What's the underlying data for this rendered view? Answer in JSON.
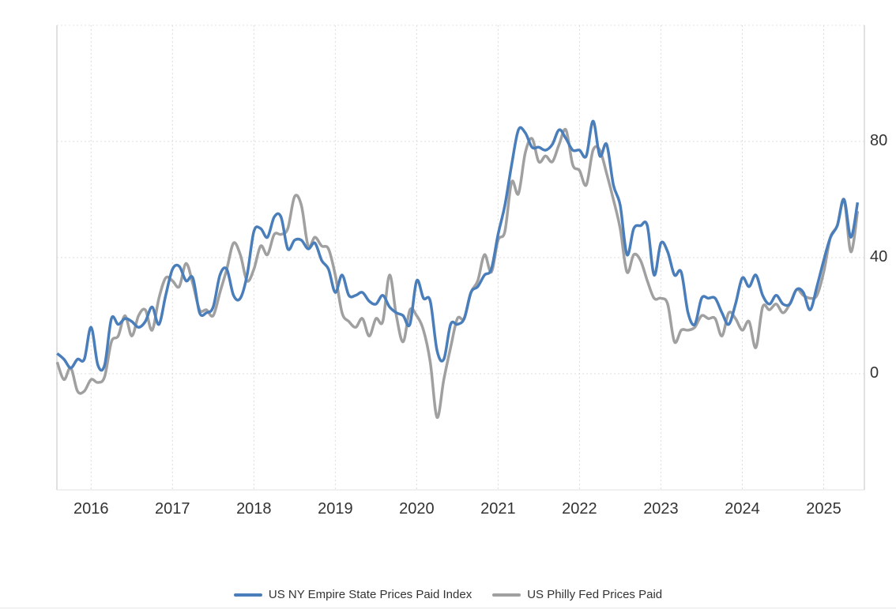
{
  "chart_data": {
    "type": "line",
    "title": "",
    "xlabel": "",
    "ylabel": "",
    "start": "2015-08",
    "frequency": "monthly",
    "xlim": [
      2015.58,
      2025.5
    ],
    "ylim": [
      -40,
      120
    ],
    "x_ticks": [
      "2016",
      "2017",
      "2018",
      "2019",
      "2020",
      "2021",
      "2022",
      "2023",
      "2024",
      "2025"
    ],
    "y_ticks": [
      "0",
      "40",
      "80"
    ],
    "y_tick_values": [
      0,
      40,
      80
    ],
    "grid": true,
    "legend_position": "bottom-center",
    "series": [
      {
        "name": "US NY Empire State Prices Paid Index",
        "color": "#4a7ebb",
        "values": [
          7,
          5,
          2,
          5,
          5,
          16,
          3,
          3,
          19,
          17,
          19,
          18,
          16,
          18,
          23,
          17,
          27,
          36,
          37,
          32,
          33,
          21,
          21,
          23,
          34,
          36,
          27,
          26,
          34,
          49,
          50,
          47,
          54,
          54,
          43,
          46,
          46,
          43,
          45,
          39,
          36,
          28,
          34,
          27,
          27,
          28,
          25,
          24,
          27,
          23,
          21,
          20,
          17,
          32,
          26,
          25,
          8,
          5,
          17,
          17,
          19,
          28,
          30,
          34,
          36,
          48,
          58,
          72,
          84,
          83,
          78,
          78,
          77,
          79,
          84,
          81,
          77,
          77,
          75,
          87,
          75,
          79,
          65,
          58,
          41,
          50,
          51,
          51,
          34,
          45,
          42,
          34,
          35,
          21,
          17,
          26,
          26,
          26,
          21,
          17,
          24,
          33,
          30,
          34,
          27,
          24,
          27,
          24,
          24,
          29,
          28,
          22,
          30,
          39,
          47,
          51,
          60,
          47,
          59
        ]
      },
      {
        "name": "US Philly Fed Prices Paid",
        "color": "#a0a0a0",
        "values": [
          4,
          -2,
          2,
          -6,
          -6,
          -2,
          -3,
          -1,
          11,
          13,
          20,
          13,
          20,
          22,
          15,
          26,
          33,
          32,
          30,
          38,
          31,
          22,
          22,
          20,
          28,
          36,
          45,
          41,
          32,
          36,
          44,
          41,
          48,
          48,
          50,
          61,
          58,
          44,
          47,
          44,
          43,
          34,
          21,
          18,
          16,
          19,
          13,
          19,
          18,
          34,
          20,
          11,
          22,
          20,
          15,
          4,
          -15,
          -2,
          9,
          19,
          19,
          28,
          32,
          41,
          35,
          46,
          49,
          66,
          62,
          76,
          81,
          73,
          75,
          73,
          79,
          84,
          72,
          70,
          65,
          77,
          77,
          69,
          60,
          50,
          35,
          41,
          39,
          32,
          26,
          26,
          24,
          11,
          15,
          15,
          16,
          20,
          19,
          19,
          13,
          21,
          19,
          15,
          18,
          9,
          23,
          22,
          24,
          21,
          24,
          29,
          27,
          26,
          27,
          35,
          47,
          51,
          60,
          42,
          56
        ]
      }
    ]
  }
}
